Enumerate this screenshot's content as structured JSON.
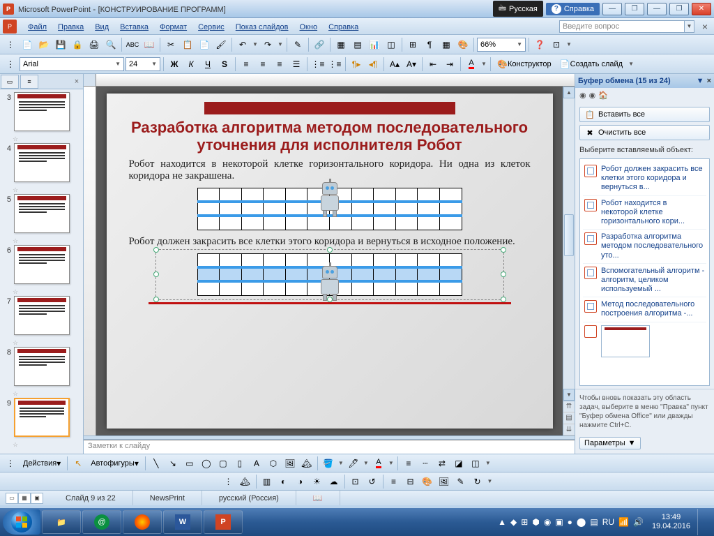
{
  "window": {
    "app": "Microsoft PowerPoint",
    "doc": "[КОНСТРУИРОВАНИЕ ПРОГРАММ]",
    "lang_indicator": "Русская",
    "help_label": "Справка"
  },
  "menu": {
    "items": [
      "Файл",
      "Правка",
      "Вид",
      "Вставка",
      "Формат",
      "Сервис",
      "Показ слайдов",
      "Окно",
      "Справка"
    ],
    "question_placeholder": "Введите вопрос"
  },
  "std_toolbar": {
    "zoom": "66%"
  },
  "fmt_toolbar": {
    "font": "Arial",
    "size": "24",
    "bold": "Ж",
    "italic": "К",
    "underline": "Ч",
    "shadow": "S",
    "designer": "Конструктор",
    "new_slide": "Создать слайд"
  },
  "slides": {
    "visible": [
      3,
      4,
      5,
      6,
      7,
      8,
      9
    ],
    "selected": 9
  },
  "slide_content": {
    "title": "Разработка алгоритма методом последовательного уточнения для исполнителя Робот",
    "p1": "Робот находится в некоторой клетке горизонтального коридора. Ни одна из клеток коридора не закрашена.",
    "p2": "Робот должен закрасить все клетки этого коридора и вернуться в исходное положение.",
    "grid": {
      "cols": 12,
      "rows": 3
    }
  },
  "notes_placeholder": "Заметки к слайду",
  "clipboard": {
    "title": "Буфер обмена (15 из 24)",
    "paste_all": "Вставить все",
    "clear_all": "Очистить все",
    "choose": "Выберите вставляемый объект:",
    "items": [
      "Робот должен закрасить все клетки этого коридора и вернуться в...",
      "Робот находится в некоторой клетке горизонтального кори...",
      "Разработка алгоритма методом последовательного уто...",
      "Вспомогательный алгоритм - алгоритм, целиком используемый ...",
      "Метод последовательного построения алгоритма -..."
    ],
    "footer": "Чтобы вновь показать эту область задач, выберите в меню \"Правка\" пункт \"Буфер обмена Office\" или дважды нажмите Ctrl+C.",
    "params": "Параметры"
  },
  "drawbar": {
    "actions": "Действия",
    "autoshapes": "Автофигуры"
  },
  "status": {
    "slide": "Слайд 9 из 22",
    "theme": "NewsPrint",
    "lang": "русский (Россия)"
  },
  "taskbar": {
    "time": "13:49",
    "date": "19.04.2016",
    "lang": "RU"
  },
  "colors": {
    "accent_red": "#9b1c1c",
    "corridor_blue": "#3b9be8",
    "fill_blue": "#b8d8f5"
  }
}
